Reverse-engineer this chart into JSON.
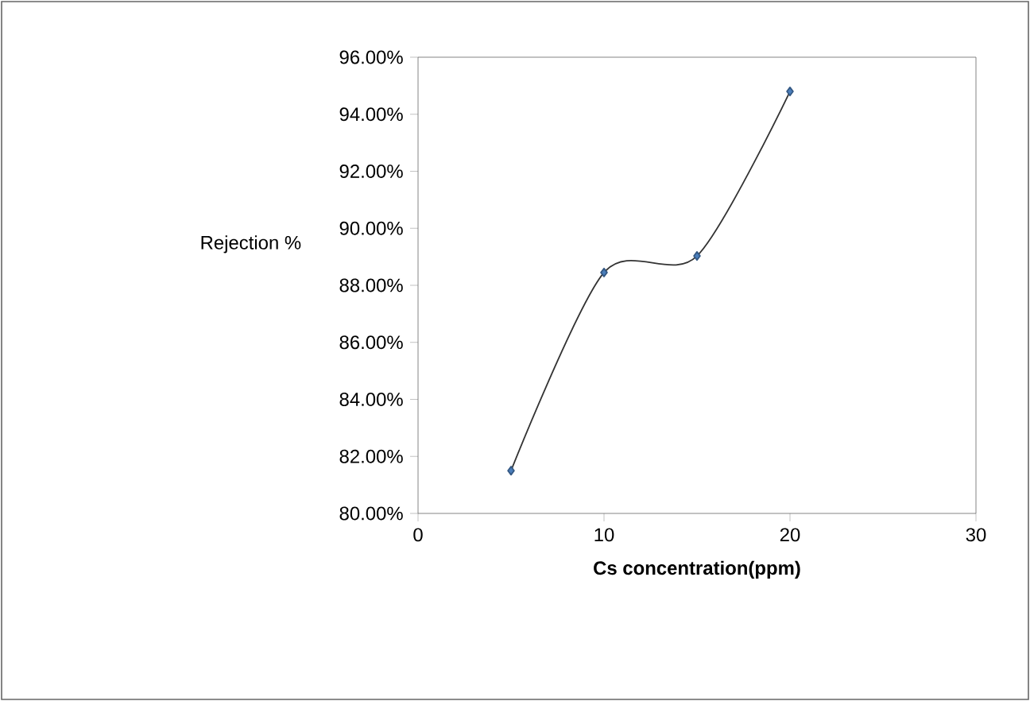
{
  "chart_data": {
    "type": "line",
    "xlabel": "Cs concentration(ppm)",
    "ylabel": "Rejection %",
    "x": [
      5,
      10,
      15,
      20
    ],
    "series": [
      {
        "color": "#4a7ebb",
        "values": [
          81.5,
          88.45,
          89.03,
          94.8
        ]
      }
    ],
    "xlim": [
      0,
      30
    ],
    "xticks": [
      0,
      10,
      20,
      30
    ],
    "ylim": [
      80,
      96
    ],
    "yticks": [
      {
        "value": 80,
        "label": "80.00%"
      },
      {
        "value": 82,
        "label": "82.00%"
      },
      {
        "value": 84,
        "label": "84.00%"
      },
      {
        "value": 86,
        "label": "86.00%"
      },
      {
        "value": 88,
        "label": "88.00%"
      },
      {
        "value": 90,
        "label": "90.00%"
      },
      {
        "value": 92,
        "label": "92.00%"
      },
      {
        "value": 94,
        "label": "94.00%"
      },
      {
        "value": 96,
        "label": "96.00%"
      }
    ],
    "grid": false,
    "marker": "diamond",
    "line_style": "solid"
  }
}
